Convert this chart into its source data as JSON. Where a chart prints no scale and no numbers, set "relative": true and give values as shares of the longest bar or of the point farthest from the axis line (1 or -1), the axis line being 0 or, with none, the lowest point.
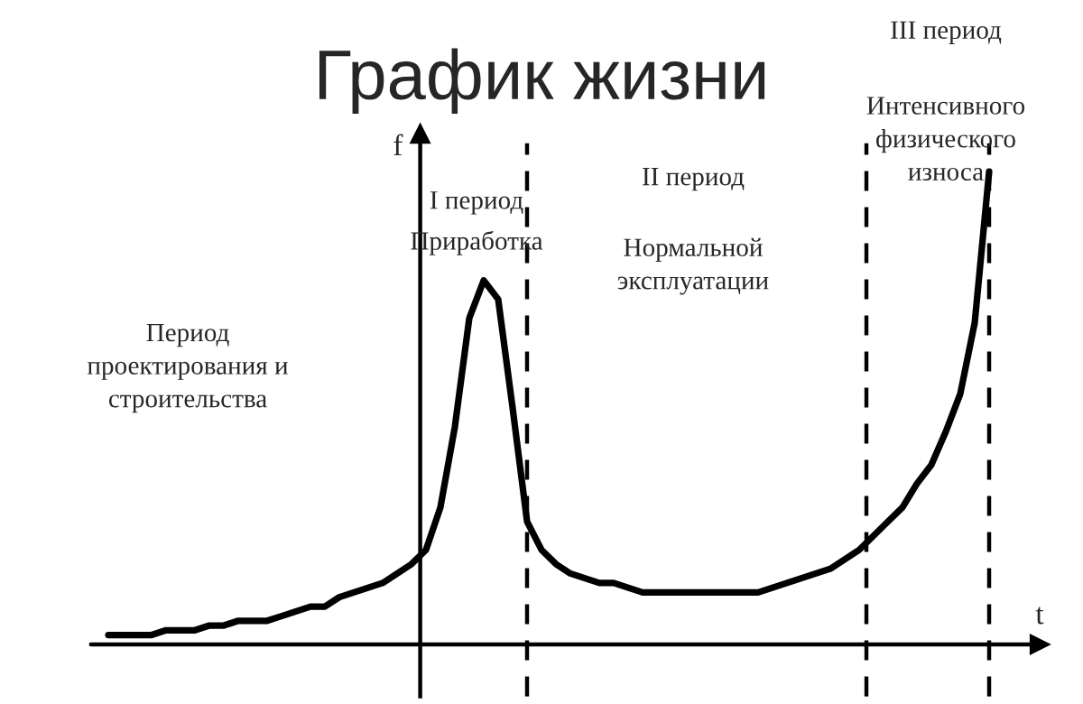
{
  "chart_data": {
    "type": "line",
    "title": "График жизни",
    "xlabel": "t",
    "ylabel": "f",
    "relative": true,
    "legend": false,
    "marker": "none",
    "line_style": "solid",
    "categories": [
      null,
      null,
      null,
      null,
      null,
      null,
      null,
      null,
      null,
      null,
      null,
      null,
      null,
      null,
      null,
      null,
      null,
      null,
      null,
      null,
      null,
      null,
      null,
      null,
      null,
      null,
      null,
      null,
      null,
      null,
      null,
      null,
      null,
      null,
      null,
      null,
      null,
      null,
      null,
      null,
      null,
      null,
      null,
      null,
      null,
      null,
      null,
      null,
      null,
      null,
      null,
      null,
      null,
      null,
      null,
      null,
      null,
      null,
      null,
      null,
      null,
      null
    ],
    "series": [
      {
        "color": "#000000",
        "values": [
          0.02,
          0.02,
          0.02,
          0.02,
          0.03,
          0.03,
          0.03,
          0.04,
          0.04,
          0.05,
          0.05,
          0.05,
          0.06,
          0.07,
          0.08,
          0.08,
          0.1,
          0.11,
          0.12,
          0.13,
          0.15,
          0.17,
          0.2,
          0.29,
          0.46,
          0.69,
          0.77,
          0.73,
          0.5,
          0.26,
          0.2,
          0.17,
          0.15,
          0.14,
          0.13,
          0.13,
          0.12,
          0.11,
          0.11,
          0.11,
          0.11,
          0.11,
          0.11,
          0.11,
          0.11,
          0.11,
          0.12,
          0.13,
          0.14,
          0.15,
          0.16,
          0.18,
          0.2,
          0.23,
          0.26,
          0.29,
          0.34,
          0.38,
          0.45,
          0.53,
          0.68,
          1.0
        ]
      }
    ],
    "annotations": [
      "Период\nпроектирования и\nстроительства",
      "I период",
      "Приработка",
      "II период",
      "Нормальной\nэксплуатации",
      "III период",
      "Интенсивного\nфизического\nизноса"
    ]
  }
}
